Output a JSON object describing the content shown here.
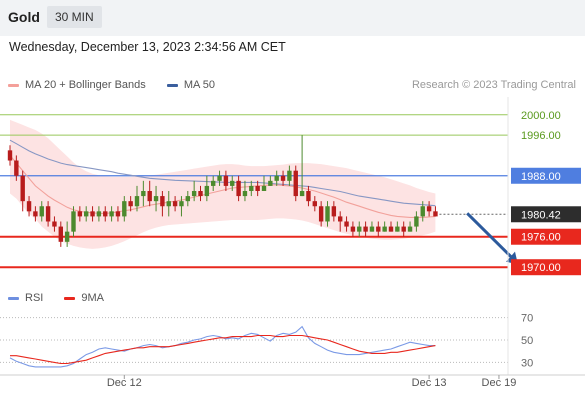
{
  "header": {
    "symbol": "Gold",
    "timeframe": "30 MIN"
  },
  "datetime": "Wednesday, December 13, 2023 2:34:56 AM CET",
  "copyright": "Research © 2023 Trading Central",
  "legend_main": [
    {
      "label": "MA 20 + Bollinger Bands",
      "color": "#f4a09a"
    },
    {
      "label": "MA 50",
      "color": "#3b5f9e"
    }
  ],
  "legend_rsi": [
    {
      "label": "RSI",
      "color": "#6e8fe0"
    },
    {
      "label": "9MA",
      "color": "#e8281e"
    }
  ],
  "colors": {
    "up": "#4c8a2e",
    "down": "#b81c1c",
    "support": "#e8281e",
    "resistance": "#98c85a",
    "pivot": "#4f7ee0",
    "arrow": "#2c5a9c"
  },
  "chart_data": [
    {
      "type": "candlestick",
      "ylim": [
        1966.5,
        2003.5
      ],
      "x_ticks": [
        {
          "label": "Dec 12",
          "index": 18
        },
        {
          "label": "Dec 13",
          "index": 66
        },
        {
          "label": "Dec 19",
          "index": 77
        }
      ],
      "levels": [
        {
          "value": 2000.0,
          "label": "2000.00",
          "kind": "resistance"
        },
        {
          "value": 1996.0,
          "label": "1996.00",
          "kind": "resistance"
        },
        {
          "value": 1988.0,
          "label": "1988.00",
          "kind": "pivot"
        },
        {
          "value": 1976.0,
          "label": "1976.00",
          "kind": "support"
        },
        {
          "value": 1970.0,
          "label": "1970.00",
          "kind": "support"
        }
      ],
      "current_price": {
        "value": 1980.42,
        "label": "1980.42"
      },
      "forecast_arrow": {
        "from": {
          "index": 72,
          "value": 1980.6
        },
        "to": {
          "index": 80,
          "value": 1970.5
        }
      },
      "candles": [
        [
          1993,
          1991,
          1994,
          1990
        ],
        [
          1991,
          1988,
          1992,
          1987
        ],
        [
          1988,
          1983,
          1989,
          1981
        ],
        [
          1983,
          1981,
          1984,
          1980
        ],
        [
          1981,
          1980,
          1982,
          1979
        ],
        [
          1980,
          1982,
          1983,
          1979
        ],
        [
          1982,
          1979,
          1983,
          1978
        ],
        [
          1979,
          1978,
          1980,
          1977
        ],
        [
          1978,
          1975,
          1979,
          1974
        ],
        [
          1975,
          1977,
          1979,
          1974
        ],
        [
          1977,
          1981,
          1982,
          1976
        ],
        [
          1981,
          1980,
          1982,
          1979
        ],
        [
          1980,
          1981,
          1982,
          1979
        ],
        [
          1981,
          1980,
          1982,
          1979
        ],
        [
          1980,
          1981,
          1982,
          1979
        ],
        [
          1981,
          1980,
          1982,
          1979
        ],
        [
          1980,
          1981,
          1982,
          1979
        ],
        [
          1981,
          1980,
          1982,
          1979
        ],
        [
          1980,
          1983,
          1984,
          1979
        ],
        [
          1983,
          1982,
          1984,
          1981
        ],
        [
          1982,
          1984,
          1986,
          1981
        ],
        [
          1984,
          1985,
          1987,
          1982
        ],
        [
          1985,
          1983,
          1987,
          1982
        ],
        [
          1983,
          1984,
          1986,
          1981
        ],
        [
          1984,
          1982,
          1985,
          1980
        ],
        [
          1982,
          1983,
          1985,
          1980
        ],
        [
          1983,
          1982,
          1984,
          1981
        ],
        [
          1982,
          1983,
          1984,
          1980
        ],
        [
          1983,
          1984,
          1985,
          1982
        ],
        [
          1984,
          1985,
          1987,
          1983
        ],
        [
          1985,
          1984,
          1986,
          1983
        ],
        [
          1984,
          1986,
          1988,
          1983
        ],
        [
          1986,
          1987,
          1988,
          1985
        ],
        [
          1987,
          1988,
          1989,
          1986
        ],
        [
          1988,
          1986,
          1989,
          1985
        ],
        [
          1986,
          1987,
          1988,
          1985
        ],
        [
          1987,
          1984,
          1988,
          1983
        ],
        [
          1984,
          1985,
          1987,
          1983
        ],
        [
          1985,
          1986,
          1987,
          1984
        ],
        [
          1986,
          1985,
          1987,
          1984
        ],
        [
          1985,
          1986,
          1988,
          1985
        ],
        [
          1986,
          1987,
          1988,
          1986
        ],
        [
          1987,
          1988,
          1989,
          1986
        ],
        [
          1988,
          1987,
          1989,
          1986
        ],
        [
          1987,
          1989,
          1990,
          1986
        ],
        [
          1989,
          1984,
          1990,
          1983
        ],
        [
          1984,
          1985,
          1996,
          1984
        ],
        [
          1985,
          1983,
          1986,
          1982
        ],
        [
          1983,
          1982,
          1984,
          1981
        ],
        [
          1982,
          1979,
          1983,
          1978
        ],
        [
          1979,
          1982,
          1983,
          1978
        ],
        [
          1982,
          1980,
          1983,
          1979
        ],
        [
          1980,
          1979,
          1981,
          1977
        ],
        [
          1979,
          1978,
          1980,
          1977
        ],
        [
          1978,
          1977,
          1979,
          1976
        ],
        [
          1977,
          1978,
          1979,
          1976
        ],
        [
          1978,
          1977,
          1979,
          1976
        ],
        [
          1977,
          1978,
          1979,
          1977
        ],
        [
          1978,
          1977,
          1979,
          1976
        ],
        [
          1977,
          1978,
          1979,
          1977
        ],
        [
          1978,
          1977,
          1979,
          1977
        ],
        [
          1977,
          1978,
          1979,
          1977
        ],
        [
          1978,
          1977,
          1979,
          1976
        ],
        [
          1977,
          1978,
          1979,
          1977
        ],
        [
          1978,
          1980,
          1981,
          1977
        ],
        [
          1980,
          1982,
          1983,
          1979
        ],
        [
          1982,
          1981,
          1983,
          1980
        ],
        [
          1981,
          1980,
          1982,
          1980
        ]
      ],
      "ma20": [
        1992,
        1990.5,
        1989,
        1987.5,
        1986,
        1985,
        1984,
        1983.2,
        1982.5,
        1981.8,
        1981.3,
        1981,
        1980.8,
        1980.7,
        1980.6,
        1980.6,
        1980.7,
        1980.9,
        1981.1,
        1981.3,
        1981.6,
        1981.9,
        1982.2,
        1982.4,
        1982.6,
        1982.8,
        1983,
        1983.2,
        1983.5,
        1983.8,
        1984.1,
        1984.4,
        1984.7,
        1985,
        1985.3,
        1985.6,
        1985.7,
        1985.8,
        1985.9,
        1986,
        1986.1,
        1986.2,
        1986.2,
        1986.1,
        1986,
        1985.8,
        1985.6,
        1985.3,
        1985,
        1984.6,
        1984.2,
        1983.8,
        1983.3,
        1982.8,
        1982.4,
        1982,
        1981.6,
        1981.2,
        1980.8,
        1980.5,
        1980.2,
        1980,
        1979.9,
        1979.8,
        1979.8,
        1979.8,
        1979.9,
        1980
      ],
      "bb_upper": [
        1999,
        1998.5,
        1998,
        1997.5,
        1997,
        1996.3,
        1995.4,
        1994.2,
        1993,
        1991.8,
        1990.6,
        1989.6,
        1988.9,
        1988.4,
        1988.1,
        1987.9,
        1987.8,
        1987.8,
        1987.8,
        1987.8,
        1987.9,
        1988,
        1988.1,
        1988.2,
        1988.4,
        1988.6,
        1988.8,
        1989,
        1989.2,
        1989.4,
        1989.6,
        1989.8,
        1990,
        1990.2,
        1990.3,
        1990.3,
        1990.2,
        1990,
        1989.9,
        1989.9,
        1989.9,
        1990,
        1990.1,
        1990.2,
        1990.4,
        1990.5,
        1990.5,
        1990.5,
        1990.4,
        1990.3,
        1990.1,
        1989.9,
        1989.7,
        1989.5,
        1989.2,
        1988.9,
        1988.6,
        1988.3,
        1988,
        1987.7,
        1987.3,
        1986.9,
        1986.5,
        1986.1,
        1985.6,
        1985.2,
        1984.8,
        1984.5
      ],
      "bb_lower": [
        1984.5,
        1983.5,
        1982,
        1980.5,
        1979.5,
        1978,
        1977,
        1976,
        1975.2,
        1974.6,
        1974.2,
        1973.9,
        1973.7,
        1973.6,
        1973.7,
        1973.9,
        1974.2,
        1974.6,
        1975.1,
        1975.7,
        1976.3,
        1976.9,
        1977.4,
        1977.8,
        1978.1,
        1978.3,
        1978.4,
        1978.5,
        1978.6,
        1978.7,
        1978.8,
        1978.9,
        1979,
        1979.1,
        1979.2,
        1979.3,
        1979.3,
        1979.3,
        1979.3,
        1979.3,
        1979.4,
        1979.5,
        1979.6,
        1979.6,
        1979.5,
        1979.4,
        1979.2,
        1978.9,
        1978.5,
        1978.1,
        1977.7,
        1977.3,
        1976.9,
        1976.6,
        1976.3,
        1976,
        1975.8,
        1975.6,
        1975.5,
        1975.4,
        1975.4,
        1975.5,
        1975.6,
        1975.8,
        1976,
        1976.3,
        1976.6,
        1977
      ],
      "ma50": [
        1995,
        1994.3,
        1993.6,
        1992.9,
        1992.3,
        1991.8,
        1991.3,
        1990.9,
        1990.5,
        1990.2,
        1990,
        1989.8,
        1989.6,
        1989.4,
        1989.2,
        1989,
        1988.8,
        1988.5,
        1988.3,
        1988.1,
        1987.9,
        1987.7,
        1987.5,
        1987.4,
        1987.3,
        1987.2,
        1987.1,
        1987.05,
        1987,
        1986.95,
        1986.9,
        1986.85,
        1986.8,
        1986.75,
        1986.7,
        1986.7,
        1986.7,
        1986.7,
        1986.7,
        1986.7,
        1986.6,
        1986.5,
        1986.4,
        1986.3,
        1986.2,
        1986.1,
        1986,
        1985.9,
        1985.7,
        1985.5,
        1985.3,
        1985.1,
        1984.9,
        1984.6,
        1984.3,
        1984,
        1983.8,
        1983.6,
        1983.4,
        1983.2,
        1983,
        1982.8,
        1982.6,
        1982.5,
        1982.4,
        1982.3,
        1982.2,
        1982.1
      ]
    },
    {
      "type": "line",
      "ylim": [
        25,
        75
      ],
      "y_ticks": [
        70,
        50,
        30
      ],
      "series": [
        {
          "name": "RSI",
          "values": [
            34,
            31,
            29,
            27,
            26,
            26,
            26,
            26,
            26,
            27,
            29,
            33,
            37,
            39,
            42,
            43,
            42,
            41,
            40,
            42,
            43,
            45,
            46,
            45,
            43,
            44,
            45,
            47,
            48,
            50,
            51,
            53,
            54,
            53,
            51,
            52,
            51,
            54,
            56,
            55,
            52,
            49,
            54,
            56,
            55,
            57,
            62,
            52,
            47,
            44,
            41,
            39,
            38,
            37,
            37,
            37,
            38,
            39,
            40,
            41,
            42,
            44,
            46,
            48,
            47,
            46,
            45,
            45
          ]
        },
        {
          "name": "9MA",
          "values": [
            36,
            36,
            35,
            34,
            33,
            32,
            31,
            30,
            29,
            29,
            30,
            31,
            32,
            34,
            36,
            38,
            39,
            40,
            41,
            42,
            43,
            43,
            44,
            44,
            44,
            44,
            45,
            46,
            47,
            48,
            49,
            50,
            51,
            52,
            52,
            53,
            53,
            53,
            53,
            54,
            54,
            54,
            53,
            53,
            54,
            54,
            54,
            53,
            52,
            51,
            50,
            48,
            46,
            44,
            42,
            40,
            39,
            38,
            38,
            38,
            39,
            39,
            40,
            41,
            42,
            43,
            44,
            45
          ]
        }
      ]
    }
  ]
}
